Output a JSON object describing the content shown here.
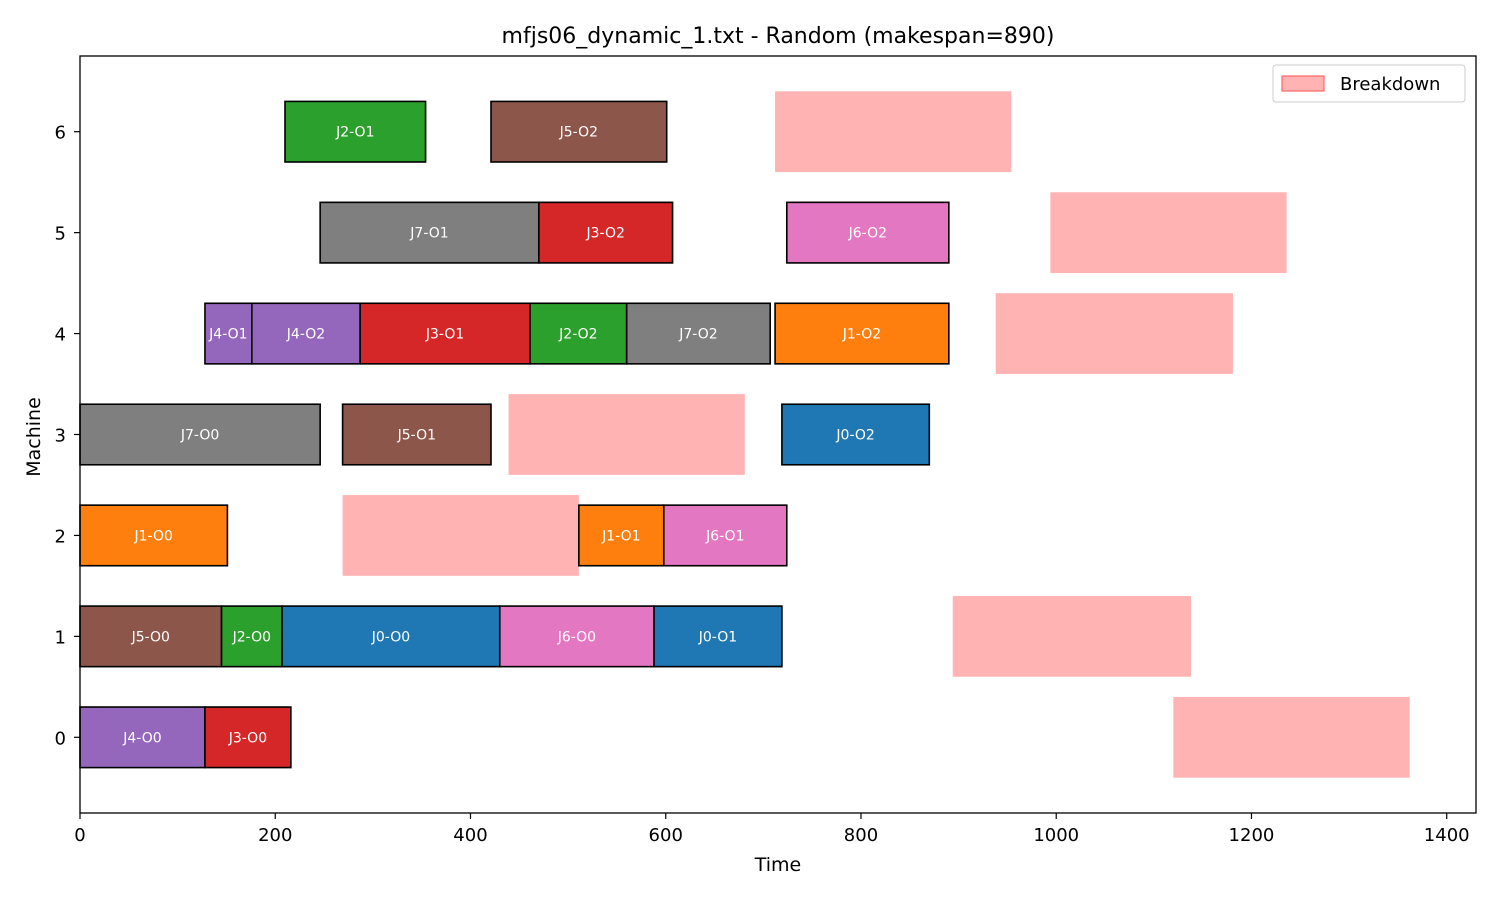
{
  "chart_data": {
    "type": "gantt",
    "title": "mfjs06_dynamic_1.txt - Random (makespan=890)",
    "xlabel": "Time",
    "ylabel": "Machine",
    "xlim": [
      0,
      1430
    ],
    "ylim": [
      -0.75,
      6.75
    ],
    "x_ticks": [
      0,
      200,
      400,
      600,
      800,
      1000,
      1200,
      1400
    ],
    "y_ticks": [
      0,
      1,
      2,
      3,
      4,
      5,
      6
    ],
    "legend": {
      "label": "Breakdown",
      "placement": "top-right",
      "color": "#ffb3b3",
      "edge": "#ff6666"
    },
    "job_colors": {
      "J0": "#1f77b4",
      "J1": "#ff7f0e",
      "J2": "#2ca02c",
      "J3": "#d62728",
      "J4": "#9467bd",
      "J5": "#8c564b",
      "J6": "#e377c2",
      "J7": "#7f7f7f"
    },
    "operations": [
      {
        "label": "J4-O0",
        "job": "J4",
        "machine": 0,
        "start": 0,
        "end": 128
      },
      {
        "label": "J3-O0",
        "job": "J3",
        "machine": 0,
        "start": 128,
        "end": 216
      },
      {
        "label": "J5-O0",
        "job": "J5",
        "machine": 1,
        "start": 0,
        "end": 145
      },
      {
        "label": "J2-O0",
        "job": "J2",
        "machine": 1,
        "start": 145,
        "end": 207
      },
      {
        "label": "J0-O0",
        "job": "J0",
        "machine": 1,
        "start": 207,
        "end": 430
      },
      {
        "label": "J6-O0",
        "job": "J6",
        "machine": 1,
        "start": 430,
        "end": 588
      },
      {
        "label": "J0-O1",
        "job": "J0",
        "machine": 1,
        "start": 588,
        "end": 719
      },
      {
        "label": "J1-O0",
        "job": "J1",
        "machine": 2,
        "start": 0,
        "end": 151
      },
      {
        "label": "J1-O1",
        "job": "J1",
        "machine": 2,
        "start": 511,
        "end": 598
      },
      {
        "label": "J6-O1",
        "job": "J6",
        "machine": 2,
        "start": 598,
        "end": 724
      },
      {
        "label": "J7-O0",
        "job": "J7",
        "machine": 3,
        "start": 0,
        "end": 246
      },
      {
        "label": "J5-O1",
        "job": "J5",
        "machine": 3,
        "start": 269,
        "end": 421
      },
      {
        "label": "J0-O2",
        "job": "J0",
        "machine": 3,
        "start": 719,
        "end": 870
      },
      {
        "label": "J4-O1",
        "job": "J4",
        "machine": 4,
        "start": 128,
        "end": 176
      },
      {
        "label": "J4-O2",
        "job": "J4",
        "machine": 4,
        "start": 176,
        "end": 287
      },
      {
        "label": "J3-O1",
        "job": "J3",
        "machine": 4,
        "start": 287,
        "end": 461
      },
      {
        "label": "J2-O2",
        "job": "J2",
        "machine": 4,
        "start": 461,
        "end": 560
      },
      {
        "label": "J7-O2",
        "job": "J7",
        "machine": 4,
        "start": 560,
        "end": 707
      },
      {
        "label": "J1-O2",
        "job": "J1",
        "machine": 4,
        "start": 712,
        "end": 890
      },
      {
        "label": "J7-O1",
        "job": "J7",
        "machine": 5,
        "start": 246,
        "end": 470
      },
      {
        "label": "J3-O2",
        "job": "J3",
        "machine": 5,
        "start": 470,
        "end": 607
      },
      {
        "label": "J6-O2",
        "job": "J6",
        "machine": 5,
        "start": 724,
        "end": 890
      },
      {
        "label": "J2-O1",
        "job": "J2",
        "machine": 6,
        "start": 210,
        "end": 354
      },
      {
        "label": "J5-O2",
        "job": "J5",
        "machine": 6,
        "start": 421,
        "end": 601
      }
    ],
    "breakdowns": [
      {
        "machine": 0,
        "start": 1120,
        "end": 1362
      },
      {
        "machine": 1,
        "start": 894,
        "end": 1138
      },
      {
        "machine": 2,
        "start": 269,
        "end": 511
      },
      {
        "machine": 3,
        "start": 439,
        "end": 681
      },
      {
        "machine": 4,
        "start": 938,
        "end": 1181
      },
      {
        "machine": 5,
        "start": 994,
        "end": 1236
      },
      {
        "machine": 6,
        "start": 712,
        "end": 954
      }
    ]
  }
}
